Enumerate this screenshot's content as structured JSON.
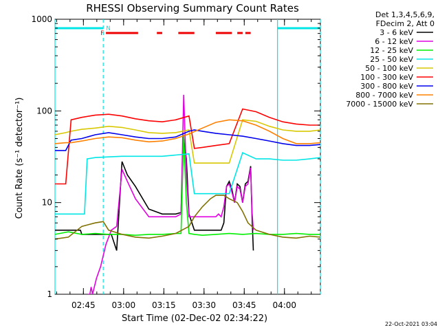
{
  "chart_data": {
    "type": "line",
    "title": "RHESSI Observing Summary Count Rates",
    "xlabel": "Start Time (02-Dec-02 02:34:22)",
    "ylabel": "Count Rate (s⁻¹ detector⁻¹)",
    "y_scale": "log",
    "ylim": [
      1,
      1000
    ],
    "xlim_minutes_from_start": [
      0,
      99
    ],
    "x_ticks": [
      {
        "label": "02:45",
        "minutes": 10.6
      },
      {
        "label": "03:00",
        "minutes": 25.6
      },
      {
        "label": "03:15",
        "minutes": 40.6
      },
      {
        "label": "03:30",
        "minutes": 55.6
      },
      {
        "label": "03:45",
        "minutes": 70.6
      },
      {
        "label": "04:00",
        "minutes": 85.6
      }
    ],
    "y_ticks": [
      {
        "label": "1",
        "value": 1
      },
      {
        "label": "10",
        "value": 10
      },
      {
        "label": "100",
        "value": 100
      },
      {
        "label": "1000",
        "value": 1000
      }
    ],
    "legend_header": [
      "Det 1,3,4,5,6,9,",
      "FDecim 2, Att 0"
    ],
    "legend_placement": "right",
    "series": [
      {
        "name": "3 - 6 keV",
        "color": "#000000",
        "x": [
          0,
          2,
          3,
          6,
          9.5,
          10,
          12,
          14,
          15.5,
          17,
          19,
          21,
          23,
          25,
          27,
          30,
          35,
          40,
          45,
          47,
          48,
          49,
          50,
          52,
          54,
          56,
          57,
          58,
          59,
          60,
          61,
          62,
          63,
          64,
          65,
          66,
          67,
          68,
          69,
          70,
          71,
          72,
          73,
          73.5,
          74
        ],
        "y": [
          5,
          5,
          5,
          5,
          5,
          4.5,
          4.5,
          4.5,
          4.5,
          4.5,
          4.5,
          4.5,
          3,
          28,
          20,
          15,
          8.5,
          7.5,
          7.5,
          7.8,
          50,
          30,
          7.5,
          5,
          5,
          5,
          5,
          5,
          5,
          5,
          5,
          5,
          6,
          15,
          17,
          14,
          10,
          16,
          15,
          10,
          16,
          17,
          25,
          7,
          3
        ]
      },
      {
        "name": "6 - 12 keV",
        "color": "#e000e0",
        "x": [
          12,
          13,
          13.5,
          14,
          15.5,
          17,
          19,
          21,
          23,
          25,
          27,
          30,
          35,
          40,
          45,
          47,
          48,
          49,
          50,
          52,
          54,
          56,
          57,
          58,
          59,
          60,
          61,
          62,
          63,
          64,
          65,
          66,
          67,
          68,
          69,
          70,
          71,
          72,
          73,
          73.5,
          74
        ],
        "y": [
          1,
          1,
          1.2,
          1,
          1.5,
          2,
          3.5,
          5,
          5.5,
          23,
          17,
          11,
          7,
          7,
          7,
          7.5,
          150,
          20,
          7,
          7,
          7,
          7,
          7,
          7,
          7,
          7,
          7.5,
          7,
          9,
          15,
          16,
          13,
          10,
          15,
          14,
          10,
          15,
          16,
          24,
          8,
          5
        ]
      },
      {
        "name": "12 - 25 keV",
        "color": "#00ee00",
        "x": [
          0,
          5,
          10,
          15,
          20,
          25,
          30,
          35,
          40,
          45,
          47,
          48,
          49,
          50,
          52,
          55,
          60,
          65,
          70,
          75,
          80,
          85,
          90,
          95,
          99
        ],
        "y": [
          4.5,
          4.8,
          4.5,
          4.6,
          4.5,
          4.5,
          4.4,
          4.5,
          4.5,
          4.6,
          4.6,
          55,
          10,
          4.6,
          4.5,
          4.4,
          4.5,
          4.6,
          4.5,
          4.6,
          4.5,
          4.5,
          4.6,
          4.5,
          4.5
        ]
      },
      {
        "name": "25 - 50 keV",
        "color": "#00e5e5",
        "x": [
          0,
          1.5,
          3,
          6,
          9,
          11,
          12,
          15,
          20,
          25,
          30,
          35,
          40,
          45,
          50,
          52,
          55,
          60,
          65,
          70,
          75,
          80,
          85,
          90,
          95,
          99
        ],
        "y": [
          7.5,
          7.5,
          7.5,
          7.5,
          7.5,
          7.5,
          30,
          31,
          31.5,
          32,
          32,
          32,
          32,
          33,
          34,
          12.5,
          12.5,
          12.5,
          12.5,
          35,
          30,
          30,
          29,
          29,
          30,
          31
        ]
      },
      {
        "name": "50 - 100 keV",
        "color": "#d8c800",
        "x": [
          0,
          4,
          6,
          10,
          15,
          20,
          25,
          30,
          35,
          40,
          45,
          50,
          52,
          55,
          60,
          65,
          70,
          75,
          80,
          85,
          90,
          95,
          99
        ],
        "y": [
          55,
          58,
          60,
          63,
          65,
          68,
          66,
          62,
          58,
          57,
          58,
          62,
          27,
          27,
          27,
          27,
          80,
          77,
          68,
          62,
          60,
          60,
          62
        ]
      },
      {
        "name": "100 - 300 keV",
        "color": "#ff0000",
        "x": [
          0,
          1.5,
          4,
          6,
          10,
          15,
          20,
          25,
          30,
          35,
          40,
          45,
          50,
          52,
          55,
          60,
          65,
          70,
          75,
          80,
          85,
          90,
          95,
          99
        ],
        "y": [
          16,
          16,
          16,
          80,
          85,
          90,
          92,
          88,
          82,
          78,
          76,
          80,
          88,
          39,
          40,
          42,
          44,
          105,
          98,
          85,
          76,
          72,
          70,
          70
        ]
      },
      {
        "name": "300 - 800 keV",
        "color": "#0000ee",
        "x": [
          0,
          1.5,
          4,
          6,
          10,
          15,
          20,
          25,
          30,
          35,
          40,
          45,
          50,
          52,
          55,
          60,
          65,
          70,
          75,
          80,
          85,
          90,
          95,
          99
        ],
        "y": [
          37,
          37,
          37,
          48,
          50,
          55,
          58,
          55,
          52,
          50,
          50,
          52,
          60,
          62,
          60,
          57,
          55,
          53,
          50,
          47,
          44,
          42,
          42,
          43
        ]
      },
      {
        "name": "800 - 7000 keV",
        "color": "#ff8000",
        "x": [
          0,
          4,
          6,
          10,
          15,
          20,
          25,
          30,
          35,
          40,
          45,
          50,
          55,
          60,
          65,
          70,
          75,
          80,
          85,
          90,
          95,
          99
        ],
        "y": [
          44,
          45,
          45,
          47,
          50,
          52,
          51,
          48,
          46,
          47,
          50,
          56,
          65,
          75,
          80,
          78,
          70,
          60,
          50,
          44,
          44,
          45
        ]
      },
      {
        "name": "7000 - 15000 keV",
        "color": "#807000",
        "x": [
          0,
          5,
          10,
          15,
          18,
          20,
          25,
          30,
          35,
          40,
          45,
          50,
          52,
          55,
          58,
          60,
          63,
          65,
          68,
          70,
          72,
          75,
          80,
          85,
          90,
          95,
          99
        ],
        "y": [
          4,
          4.2,
          5.5,
          6,
          6.2,
          5,
          4.5,
          4.2,
          4.1,
          4.3,
          4.6,
          5.5,
          7,
          9,
          11,
          12,
          12,
          11,
          10,
          8,
          6,
          5,
          4.5,
          4.2,
          4.1,
          4.3,
          4.2
        ]
      }
    ],
    "annotations": [
      {
        "type": "flag_bar",
        "label": "N",
        "color": "#00e5e5",
        "segments": [
          [
            0,
            18
          ],
          [
            83,
            99
          ]
        ]
      },
      {
        "type": "flag_bar",
        "label": "F",
        "color": "#ee0000",
        "segments": [
          [
            19,
            31
          ],
          [
            38,
            40
          ],
          [
            46,
            52
          ],
          [
            60,
            66
          ],
          [
            68,
            70
          ],
          [
            71,
            73
          ]
        ]
      },
      {
        "type": "vline",
        "style": "solid",
        "color": "#00e5e5",
        "minutes": [
          0,
          83
        ]
      },
      {
        "type": "vline",
        "style": "dashed",
        "color": "#00e5e5",
        "minutes": [
          18,
          99
        ]
      }
    ]
  },
  "footer": {
    "timestamp": "22-Oct-2021 03:04"
  }
}
